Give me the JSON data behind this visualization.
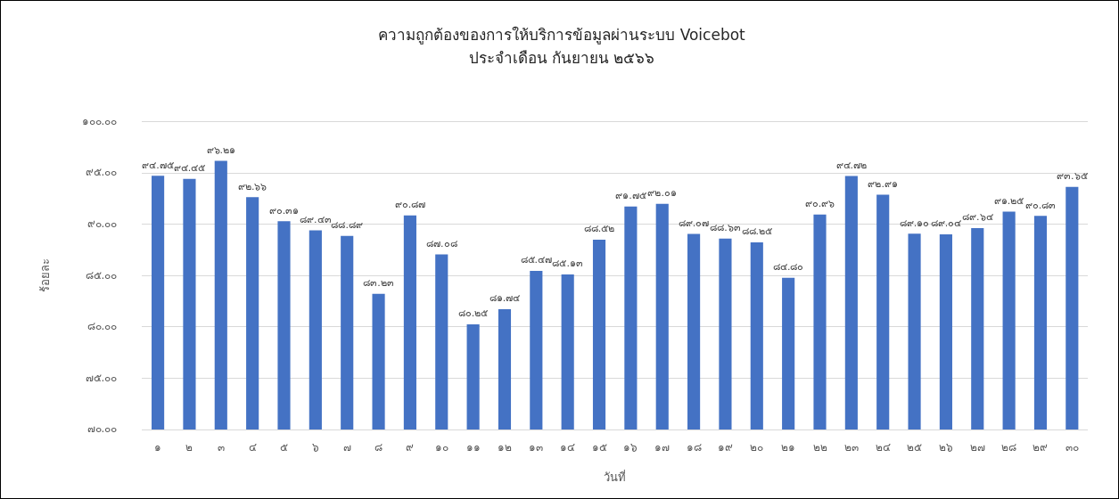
{
  "chart_data": {
    "type": "bar",
    "title": "ความถูกต้องของการให้บริการข้อมูลผ่านระบบ Voicebot",
    "subtitle": "ประจำเดือน กันยายน ๒๕๖๖",
    "xlabel": "วันที่",
    "ylabel": "ร้อยละ",
    "categories": [
      "๑",
      "๒",
      "๓",
      "๔",
      "๕",
      "๖",
      "๗",
      "๘",
      "๙",
      "๑๐",
      "๑๑",
      "๑๒",
      "๑๓",
      "๑๔",
      "๑๕",
      "๑๖",
      "๑๗",
      "๑๘",
      "๑๙",
      "๒๐",
      "๒๑",
      "๒๒",
      "๒๓",
      "๒๔",
      "๒๕",
      "๒๖",
      "๒๗",
      "๒๘",
      "๒๙",
      "๓๐"
    ],
    "values": [
      94.75,
      94.45,
      96.21,
      92.66,
      90.31,
      89.43,
      88.89,
      83.23,
      90.87,
      87.08,
      80.25,
      81.74,
      85.47,
      85.13,
      88.52,
      91.75,
      92.01,
      89.07,
      88.63,
      88.25,
      84.8,
      90.96,
      94.72,
      92.91,
      89.1,
      89.04,
      89.64,
      91.25,
      90.83,
      93.65
    ],
    "value_labels": [
      "๙๔.๗๕",
      "๙๔.๔๕",
      "๙๖.๒๑",
      "๙๒.๖๖",
      "๙๐.๓๑",
      "๘๙.๔๓",
      "๘๘.๘๙",
      "๘๓.๒๓",
      "๙๐.๘๗",
      "๘๗.๐๘",
      "๘๐.๒๕",
      "๘๑.๗๔",
      "๘๕.๔๗",
      "๘๕.๑๓",
      "๘๘.๕๒",
      "๙๑.๗๕",
      "๙๒.๐๑",
      "๘๙.๐๗",
      "๘๘.๖๓",
      "๘๘.๒๕",
      "๘๔.๘๐",
      "๙๐.๙๖",
      "๙๔.๗๒",
      "๙๒.๙๑",
      "๘๙.๑๐",
      "๘๙.๐๔",
      "๘๙.๖๔",
      "๙๑.๒๕",
      "๙๐.๘๓",
      "๙๓.๖๕"
    ],
    "color": "#4472c4",
    "ylim": [
      70,
      100
    ],
    "yticks": [
      {
        "value": 70,
        "label": "๗๐.๐๐"
      },
      {
        "value": 75,
        "label": "๗๕.๐๐"
      },
      {
        "value": 80,
        "label": "๘๐.๐๐"
      },
      {
        "value": 85,
        "label": "๘๕.๐๐"
      },
      {
        "value": 90,
        "label": "๙๐.๐๐"
      },
      {
        "value": 95,
        "label": "๙๕.๐๐"
      },
      {
        "value": 100,
        "label": "๑๐๐.๐๐"
      }
    ],
    "grid": "y"
  }
}
